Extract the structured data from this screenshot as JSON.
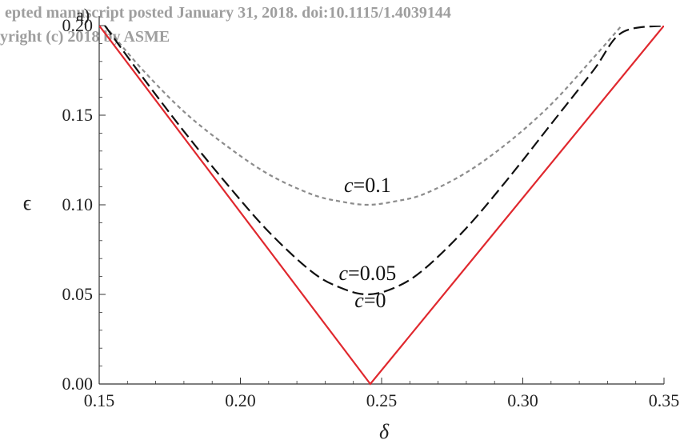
{
  "watermark": {
    "line1": "epted manuscript posted January 31, 2018. doi:10.1115/1.4039144",
    "line2": "yright (c) 2018 by ASME"
  },
  "panel_label": "a)",
  "chart_data": {
    "type": "line",
    "xlabel": "δ",
    "ylabel": "ϵ",
    "xlim": [
      0.15,
      0.35
    ],
    "ylim": [
      0.0,
      0.2
    ],
    "xticks": [
      "0.15",
      "0.20",
      "0.25",
      "0.30",
      "0.35"
    ],
    "yticks": [
      "0.00",
      "0.05",
      "0.10",
      "0.15",
      "0.20"
    ],
    "x_tick_values": [
      0.15,
      0.2,
      0.25,
      0.3,
      0.35
    ],
    "y_tick_values": [
      0.0,
      0.05,
      0.1,
      0.15,
      0.2
    ],
    "grid": false,
    "series": [
      {
        "label_var": "c",
        "label_rest": "=0.1",
        "color": "#8c8c8c",
        "style": "short-dash",
        "x": [
          0.152,
          0.165,
          0.18,
          0.195,
          0.21,
          0.225,
          0.235,
          0.245,
          0.255,
          0.265,
          0.28,
          0.295,
          0.31,
          0.325,
          0.335
        ],
        "y": [
          0.2,
          0.176,
          0.152,
          0.133,
          0.117,
          0.106,
          0.102,
          0.1,
          0.102,
          0.106,
          0.118,
          0.135,
          0.156,
          0.182,
          0.2
        ]
      },
      {
        "label_var": "c",
        "label_rest": "=0.05",
        "color": "#111111",
        "style": "long-dash",
        "x": [
          0.152,
          0.165,
          0.18,
          0.195,
          0.21,
          0.225,
          0.235,
          0.245,
          0.255,
          0.265,
          0.28,
          0.295,
          0.31,
          0.325,
          0.335,
          0.35
        ],
        "y": [
          0.2,
          0.172,
          0.141,
          0.112,
          0.085,
          0.063,
          0.054,
          0.05,
          0.054,
          0.064,
          0.087,
          0.115,
          0.145,
          0.175,
          0.196,
          0.2
        ]
      },
      {
        "label_var": "c",
        "label_rest": "=0",
        "color": "#e0282e",
        "style": "solid",
        "x": [
          0.15,
          0.246,
          0.35
        ],
        "y": [
          0.2,
          0.0,
          0.2
        ]
      }
    ]
  }
}
